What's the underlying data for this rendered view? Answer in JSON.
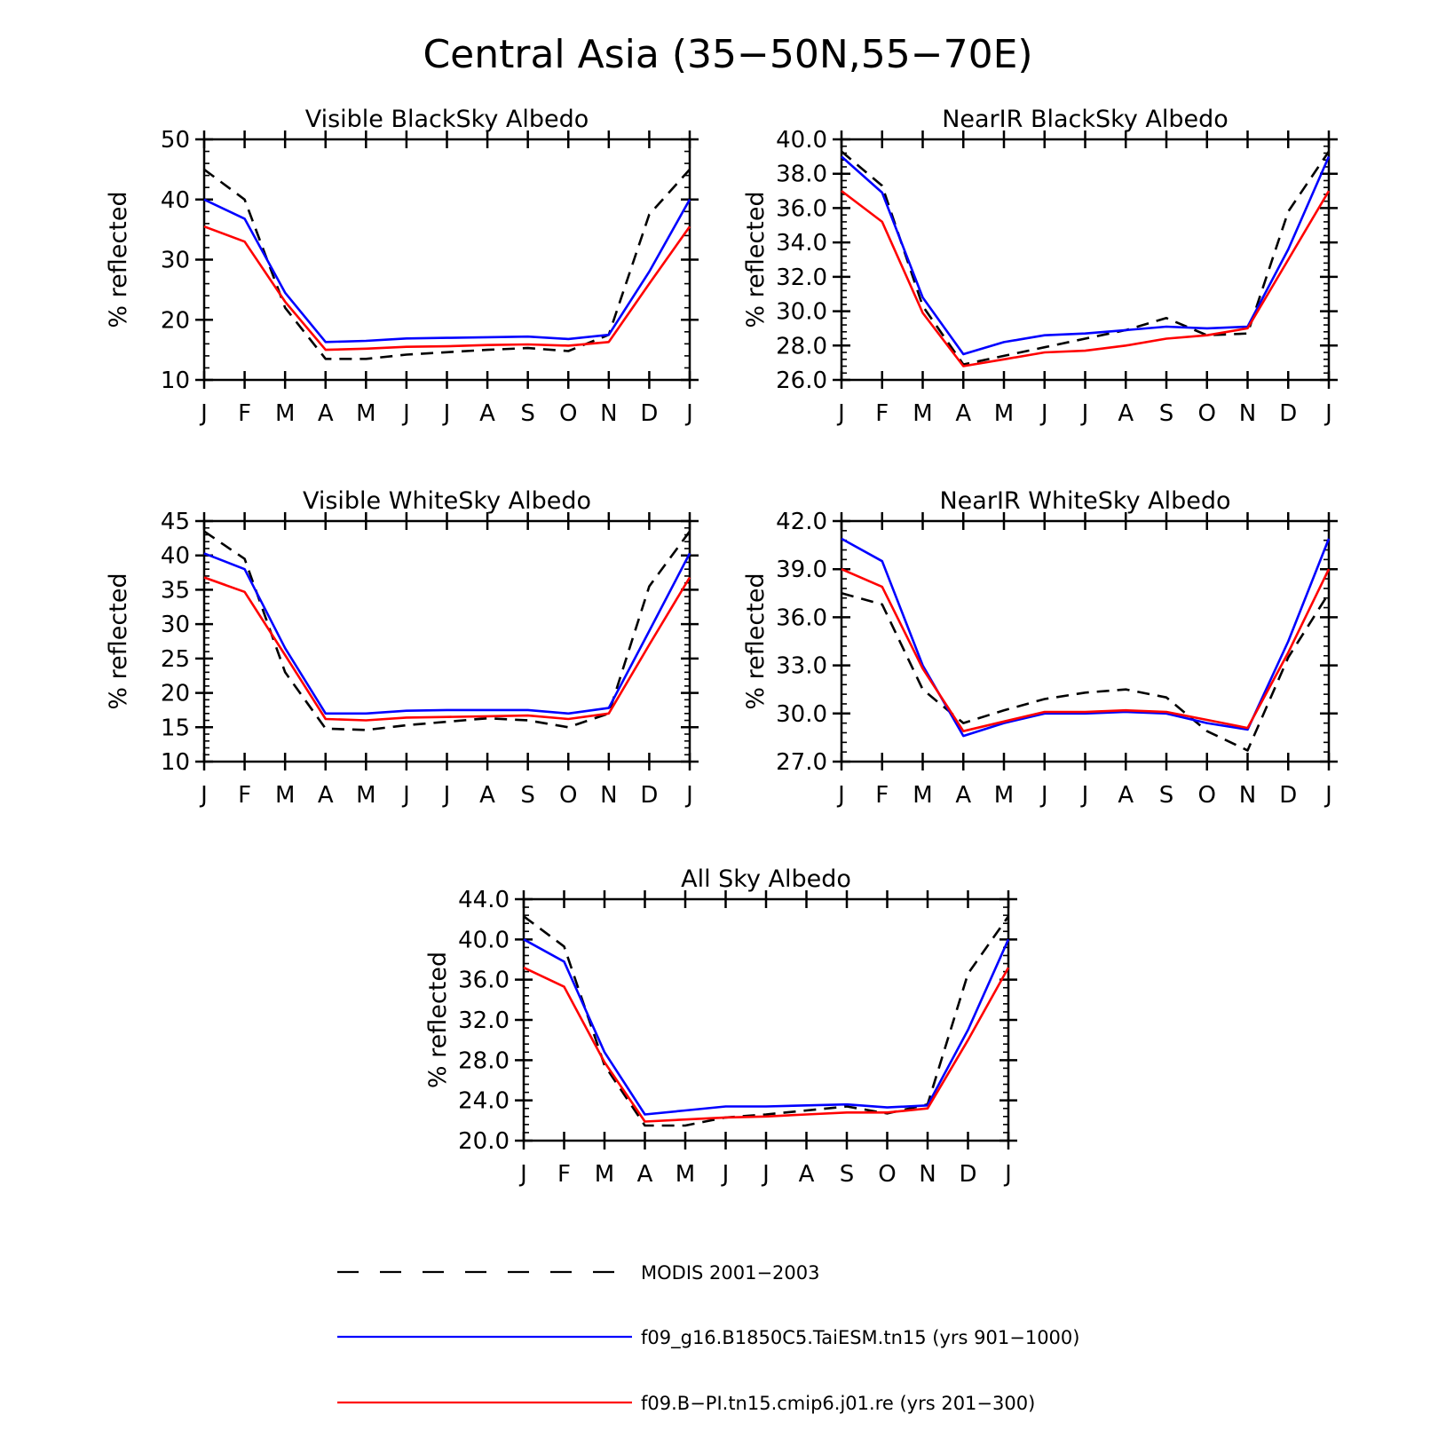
{
  "figure": {
    "title": "Central Asia (35−50N,55−70E)"
  },
  "legend": {
    "items": [
      {
        "label": "MODIS 2001−2003",
        "color": "#000000",
        "dashed": true
      },
      {
        "label": "f09_g16.B1850C5.TaiESM.tn15 (yrs 901−1000)",
        "color": "#0000ff",
        "dashed": false
      },
      {
        "label": "f09.B−PI.tn15.cmip6.j01.re (yrs 201−300)",
        "color": "#ff0000",
        "dashed": false
      }
    ]
  },
  "chart_data": [
    {
      "type": "line",
      "title": "Visible BlackSky Albedo",
      "ylabel": "% reflected",
      "categories": [
        "J",
        "F",
        "M",
        "A",
        "M",
        "J",
        "J",
        "A",
        "S",
        "O",
        "N",
        "D",
        "J"
      ],
      "ylim": [
        10,
        50
      ],
      "yticks": [
        "10",
        "20",
        "30",
        "40",
        "50"
      ],
      "grid": false,
      "series": [
        {
          "name": "MODIS 2001−2003",
          "color": "#000000",
          "dashed": true,
          "values": [
            45.0,
            40.0,
            22.0,
            13.5,
            13.5,
            14.2,
            14.6,
            15.0,
            15.3,
            14.8,
            17.5,
            37.5,
            45.0
          ]
        },
        {
          "name": "f09_g16.B1850C5.TaiESM.tn15 (yrs 901−1000)",
          "color": "#0000ff",
          "dashed": false,
          "values": [
            40.0,
            36.8,
            24.5,
            16.3,
            16.5,
            16.9,
            17.0,
            17.1,
            17.2,
            16.8,
            17.5,
            28.0,
            40.0
          ]
        },
        {
          "name": "f09.B−PI.tn15.cmip6.j01.re (yrs 201−300)",
          "color": "#ff0000",
          "dashed": false,
          "values": [
            35.5,
            33.0,
            23.0,
            15.0,
            15.2,
            15.5,
            15.6,
            15.8,
            15.9,
            15.7,
            16.3,
            26.0,
            35.5
          ]
        }
      ]
    },
    {
      "type": "line",
      "title": "NearIR BlackSky Albedo",
      "ylabel": "% reflected",
      "categories": [
        "J",
        "F",
        "M",
        "A",
        "M",
        "J",
        "J",
        "A",
        "S",
        "O",
        "N",
        "D",
        "J"
      ],
      "ylim": [
        26,
        40
      ],
      "yticks": [
        "26.0",
        "28.0",
        "30.0",
        "32.0",
        "34.0",
        "36.0",
        "38.0",
        "40.0"
      ],
      "grid": false,
      "series": [
        {
          "name": "MODIS 2001−2003",
          "color": "#000000",
          "dashed": true,
          "values": [
            39.3,
            37.3,
            30.3,
            26.9,
            27.4,
            27.9,
            28.4,
            28.9,
            29.6,
            28.6,
            28.7,
            35.8,
            39.3
          ]
        },
        {
          "name": "f09_g16.B1850C5.TaiESM.tn15 (yrs 901−1000)",
          "color": "#0000ff",
          "dashed": false,
          "values": [
            39.0,
            36.9,
            30.8,
            27.5,
            28.2,
            28.6,
            28.7,
            28.9,
            29.1,
            29.0,
            29.1,
            33.6,
            39.0
          ]
        },
        {
          "name": "f09.B−PI.tn15.cmip6.j01.re (yrs 201−300)",
          "color": "#ff0000",
          "dashed": false,
          "values": [
            37.0,
            35.2,
            29.9,
            26.8,
            27.2,
            27.6,
            27.7,
            28.0,
            28.4,
            28.6,
            29.0,
            33.0,
            37.0
          ]
        }
      ]
    },
    {
      "type": "line",
      "title": "Visible WhiteSky Albedo",
      "ylabel": "% reflected",
      "categories": [
        "J",
        "F",
        "M",
        "A",
        "M",
        "J",
        "J",
        "A",
        "S",
        "O",
        "N",
        "D",
        "J"
      ],
      "ylim": [
        10,
        45
      ],
      "yticks": [
        "10",
        "15",
        "20",
        "25",
        "30",
        "35",
        "40",
        "45"
      ],
      "grid": false,
      "series": [
        {
          "name": "MODIS 2001−2003",
          "color": "#000000",
          "dashed": true,
          "values": [
            43.5,
            39.5,
            23.0,
            14.8,
            14.6,
            15.3,
            15.8,
            16.3,
            16.0,
            15.0,
            17.0,
            35.5,
            43.5
          ]
        },
        {
          "name": "f09_g16.B1850C5.TaiESM.tn15 (yrs 901−1000)",
          "color": "#0000ff",
          "dashed": false,
          "values": [
            40.3,
            38.0,
            26.5,
            17.0,
            17.0,
            17.4,
            17.5,
            17.5,
            17.5,
            17.0,
            17.8,
            29.0,
            40.3
          ]
        },
        {
          "name": "f09.B−PI.tn15.cmip6.j01.re (yrs 201−300)",
          "color": "#ff0000",
          "dashed": false,
          "values": [
            36.8,
            34.7,
            25.5,
            16.2,
            16.0,
            16.4,
            16.5,
            16.6,
            16.7,
            16.2,
            17.0,
            27.0,
            36.8
          ]
        }
      ]
    },
    {
      "type": "line",
      "title": "NearIR WhiteSky Albedo",
      "ylabel": "% reflected",
      "categories": [
        "J",
        "F",
        "M",
        "A",
        "M",
        "J",
        "J",
        "A",
        "S",
        "O",
        "N",
        "D",
        "J"
      ],
      "ylim": [
        27,
        42
      ],
      "yticks": [
        "27.0",
        "30.0",
        "33.0",
        "36.0",
        "39.0",
        "42.0"
      ],
      "grid": false,
      "series": [
        {
          "name": "MODIS 2001−2003",
          "color": "#000000",
          "dashed": true,
          "values": [
            37.5,
            36.8,
            31.5,
            29.4,
            30.2,
            30.9,
            31.3,
            31.5,
            31.0,
            28.9,
            27.7,
            33.5,
            37.5
          ]
        },
        {
          "name": "f09_g16.B1850C5.TaiESM.tn15 (yrs 901−1000)",
          "color": "#0000ff",
          "dashed": false,
          "values": [
            40.9,
            39.5,
            33.0,
            28.6,
            29.4,
            30.0,
            30.0,
            30.1,
            30.0,
            29.4,
            29.0,
            34.5,
            40.9
          ]
        },
        {
          "name": "f09.B−PI.tn15.cmip6.j01.re (yrs 201−300)",
          "color": "#ff0000",
          "dashed": false,
          "values": [
            39.0,
            37.9,
            32.8,
            28.9,
            29.5,
            30.1,
            30.1,
            30.2,
            30.1,
            29.6,
            29.1,
            33.8,
            39.0
          ]
        }
      ]
    },
    {
      "type": "line",
      "title": "All Sky Albedo",
      "ylabel": "% reflected",
      "categories": [
        "J",
        "F",
        "M",
        "A",
        "M",
        "J",
        "J",
        "A",
        "S",
        "O",
        "N",
        "D",
        "J"
      ],
      "ylim": [
        20,
        44
      ],
      "yticks": [
        "20.0",
        "24.0",
        "28.0",
        "32.0",
        "36.0",
        "40.0",
        "44.0"
      ],
      "grid": false,
      "series": [
        {
          "name": "MODIS 2001−2003",
          "color": "#000000",
          "dashed": true,
          "values": [
            42.3,
            39.3,
            27.5,
            21.5,
            21.5,
            22.3,
            22.6,
            23.0,
            23.4,
            22.7,
            23.6,
            36.6,
            42.3
          ]
        },
        {
          "name": "f09_g16.B1850C5.TaiESM.tn15 (yrs 901−1000)",
          "color": "#0000ff",
          "dashed": false,
          "values": [
            40.0,
            37.8,
            28.8,
            22.6,
            23.0,
            23.4,
            23.4,
            23.5,
            23.6,
            23.3,
            23.5,
            31.0,
            40.0
          ]
        },
        {
          "name": "f09.B−PI.tn15.cmip6.j01.re (yrs 201−300)",
          "color": "#ff0000",
          "dashed": false,
          "values": [
            37.2,
            35.3,
            27.8,
            21.9,
            22.1,
            22.3,
            22.4,
            22.6,
            22.8,
            22.8,
            23.2,
            30.0,
            37.2
          ]
        }
      ]
    }
  ]
}
